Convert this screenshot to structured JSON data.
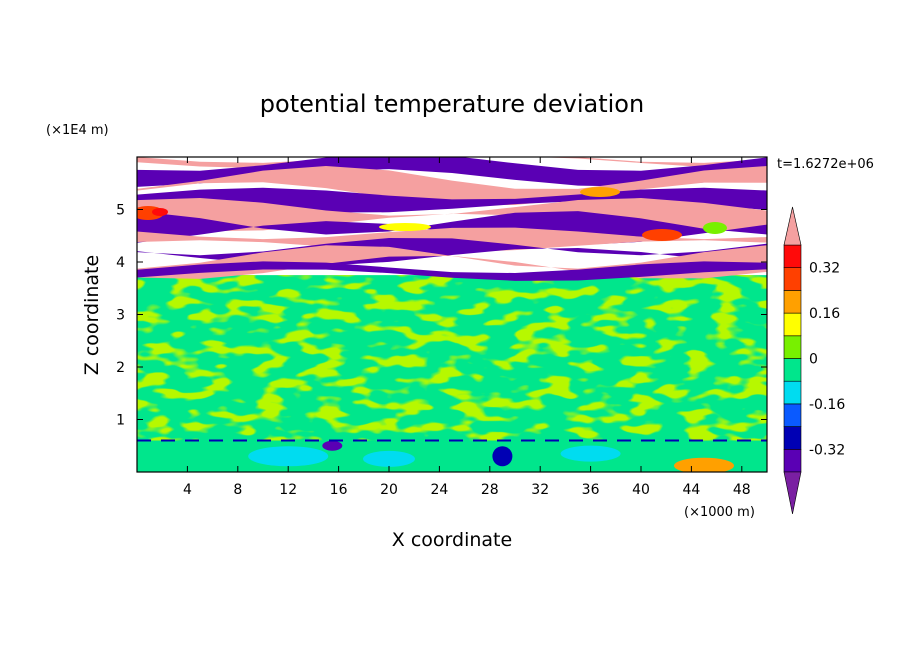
{
  "chart_data": {
    "type": "heatmap",
    "title": "potential temperature deviation",
    "xlabel": "X coordinate",
    "ylabel": "Z coordinate",
    "x_unit": "(×1000 m)",
    "y_unit": "(×1E4 m)",
    "time_label": "t=1.6272e+06",
    "xlim": [
      0,
      50
    ],
    "ylim": [
      0,
      6
    ],
    "x_ticks": [
      4,
      8,
      12,
      16,
      20,
      24,
      28,
      32,
      36,
      40,
      44,
      48
    ],
    "y_ticks": [
      1,
      2,
      3,
      4,
      5
    ],
    "colorbar": {
      "levels": [
        -0.4,
        -0.32,
        -0.24,
        -0.16,
        -0.08,
        0,
        0.08,
        0.16,
        0.24,
        0.32,
        0.4
      ],
      "labels": [
        "0.32",
        "0.16",
        "0",
        "-0.16",
        "-0.32"
      ],
      "label_values": [
        0.32,
        0.16,
        0,
        -0.16,
        -0.32
      ],
      "colors": [
        "#7a1fa2",
        "#5a00b4",
        "#0000b4",
        "#0a5aff",
        "#00dcf0",
        "#00e68c",
        "#78f000",
        "#ffff00",
        "#ffa000",
        "#ff4000",
        "#ff0a0a",
        "#f5a0a0"
      ],
      "extend": "both"
    },
    "layers": [
      {
        "z": [
          0.0,
          0.6
        ],
        "description_key": "boundary-layer",
        "dominant": -0.04
      },
      {
        "z": [
          0.6,
          3.7
        ],
        "dominant": 0.02
      },
      {
        "z": [
          3.7,
          6.0
        ],
        "dominant": "alternating"
      }
    ]
  }
}
